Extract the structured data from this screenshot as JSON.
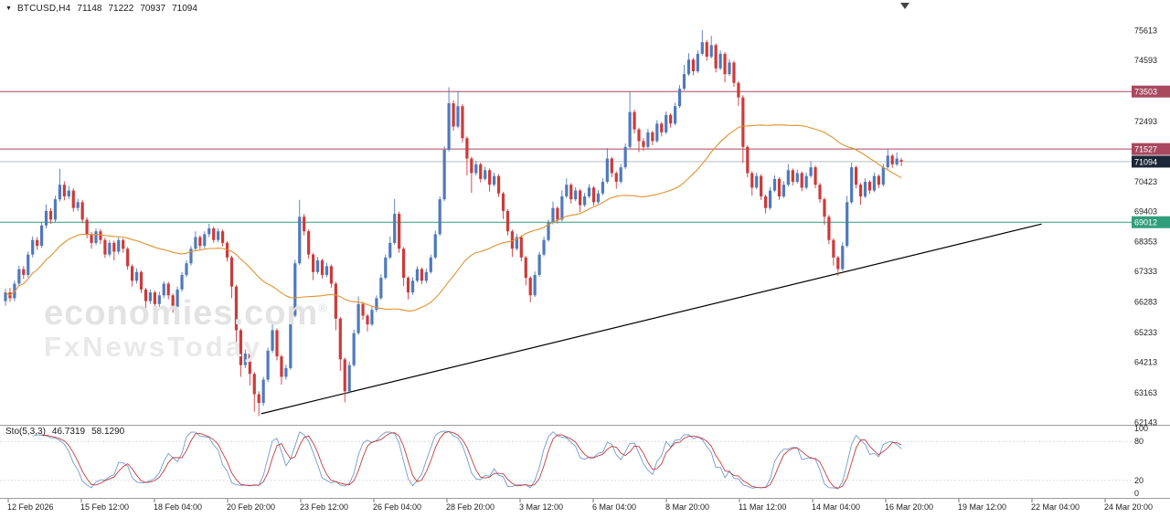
{
  "header": {
    "marker": "▼",
    "symbol": "BTCUSD,H4",
    "open": "71148",
    "high": "71222",
    "low": "70937",
    "close": "71094"
  },
  "watermark": {
    "line1": "economies.com",
    "trademark": "®",
    "line2": "FxNewsToday"
  },
  "indicator": {
    "name": "Sto(5,3,3)",
    "value1": "46.7319",
    "value2": "58.1290",
    "axis_labels": [
      "100",
      "80",
      "20",
      "0"
    ],
    "axis_values": [
      100,
      80,
      20,
      0
    ],
    "level_lines": [
      80,
      20
    ]
  },
  "price_axis": {
    "labels": [
      {
        "text": "75613",
        "price": 75613,
        "badge": false
      },
      {
        "text": "74593",
        "price": 74593,
        "badge": false
      },
      {
        "text": "73503",
        "price": 73503,
        "badge": true,
        "color": "#a8495f"
      },
      {
        "text": "72493",
        "price": 72493,
        "badge": false
      },
      {
        "text": "71527",
        "price": 71527,
        "badge": true,
        "color": "#a8495f"
      },
      {
        "text": "71094",
        "price": 71094,
        "badge": true,
        "color": "#1b2736"
      },
      {
        "text": "70423",
        "price": 70423,
        "badge": false
      },
      {
        "text": "69403",
        "price": 69403,
        "badge": false
      },
      {
        "text": "69012",
        "price": 69012,
        "badge": true,
        "color": "#2f9e7b"
      },
      {
        "text": "68353",
        "price": 68353,
        "badge": false
      },
      {
        "text": "67333",
        "price": 67333,
        "badge": false
      },
      {
        "text": "66283",
        "price": 66283,
        "badge": false
      },
      {
        "text": "65233",
        "price": 65233,
        "badge": false
      },
      {
        "text": "64213",
        "price": 64213,
        "badge": false
      },
      {
        "text": "63163",
        "price": 63163,
        "badge": false
      },
      {
        "text": "62143",
        "price": 62143,
        "badge": false
      }
    ]
  },
  "time_axis": {
    "labels": [
      "12 Feb 2026",
      "15 Feb 12:00",
      "18 Feb 04:00",
      "20 Feb 20:00",
      "23 Feb 12:00",
      "26 Feb 04:00",
      "28 Feb 20:00",
      "3 Mar 12:00",
      "6 Mar 04:00",
      "8 Mar 20:00",
      "11 Mar 12:00",
      "14 Mar 04:00",
      "16 Mar 20:00",
      "19 Mar 12:00",
      "22 Mar 04:00",
      "24 Mar 20:00"
    ]
  },
  "chart_data": {
    "type": "candlestick",
    "symbol": "BTCUSD",
    "timeframe": "H4",
    "title": "BTCUSD,H4",
    "ylim": [
      62143,
      75613
    ],
    "grid": false,
    "last_price": 71094,
    "up_color": "#5079bd",
    "down_color": "#cd3a3a",
    "ma_color": "#e0922f",
    "sto_k_color": "#6f9bd1",
    "sto_d_color": "#c43c3c",
    "moving_average": {
      "type": "SMA",
      "period": 40
    },
    "stochastic": {
      "k_period": 5,
      "slowing": 3,
      "d_period": 3,
      "current_k": 46.7319,
      "current_d": 58.129
    },
    "levels": [
      {
        "price": 73503,
        "color": "#a8495f",
        "name": "resistance-line-73503"
      },
      {
        "price": 71527,
        "color": "#a8495f",
        "name": "resistance-line-71527"
      },
      {
        "price": 71094,
        "color": "#b7bec4",
        "name": "current-price-line"
      },
      {
        "price": 69012,
        "color": "#2f9e7b",
        "name": "support-line-69012"
      }
    ],
    "trendline": {
      "from_bar": 56.5,
      "from_price": 62430,
      "to_bar": 229,
      "to_price": 68950,
      "color": "#000000"
    },
    "candles": [
      [
        66300,
        66720,
        66140,
        66600
      ],
      [
        66600,
        66750,
        66280,
        66400
      ],
      [
        66400,
        67000,
        66300,
        66900
      ],
      [
        66900,
        67520,
        66820,
        67400
      ],
      [
        67400,
        67510,
        67060,
        67200
      ],
      [
        67200,
        68010,
        67110,
        67900
      ],
      [
        67900,
        68520,
        67800,
        68400
      ],
      [
        68400,
        68500,
        68060,
        68200
      ],
      [
        68200,
        69010,
        68120,
        68900
      ],
      [
        68900,
        69620,
        68800,
        69400
      ],
      [
        69400,
        69500,
        68960,
        69100
      ],
      [
        69100,
        69920,
        69020,
        69800
      ],
      [
        69800,
        70850,
        69720,
        70300
      ],
      [
        70300,
        70420,
        69760,
        69900
      ],
      [
        69900,
        70260,
        69800,
        70100
      ],
      [
        70100,
        70180,
        69380,
        69500
      ],
      [
        69500,
        69820,
        69400,
        69700
      ],
      [
        69700,
        69780,
        68980,
        69100
      ],
      [
        69100,
        69180,
        68460,
        68600
      ],
      [
        68600,
        68680,
        68100,
        68300
      ],
      [
        68300,
        68800,
        68220,
        68700
      ],
      [
        68700,
        68780,
        68260,
        68400
      ],
      [
        68400,
        68480,
        67780,
        67900
      ],
      [
        67900,
        68400,
        67820,
        68300
      ],
      [
        68300,
        68380,
        67700,
        68000
      ],
      [
        68000,
        68500,
        67900,
        68400
      ],
      [
        68400,
        68460,
        67960,
        68100
      ],
      [
        68100,
        68160,
        67380,
        67500
      ],
      [
        67500,
        67560,
        66800,
        67000
      ],
      [
        67000,
        67420,
        66900,
        67300
      ],
      [
        67300,
        67360,
        66580,
        66700
      ],
      [
        66700,
        66760,
        66000,
        66300
      ],
      [
        66300,
        66700,
        66200,
        66600
      ],
      [
        66600,
        66660,
        65950,
        66200
      ],
      [
        66200,
        66620,
        66100,
        66500
      ],
      [
        66500,
        66980,
        66400,
        66900
      ],
      [
        66900,
        66960,
        66360,
        66500
      ],
      [
        66500,
        66560,
        65900,
        66100
      ],
      [
        66100,
        66800,
        66020,
        66700
      ],
      [
        66700,
        67300,
        66620,
        67200
      ],
      [
        67200,
        67700,
        67120,
        67600
      ],
      [
        67600,
        68200,
        67520,
        68100
      ],
      [
        68100,
        68700,
        68020,
        68500
      ],
      [
        68500,
        68560,
        68080,
        68200
      ],
      [
        68200,
        68700,
        68120,
        68600
      ],
      [
        68600,
        68960,
        68500,
        68800
      ],
      [
        68800,
        68860,
        68300,
        68400
      ],
      [
        68400,
        68800,
        68320,
        68700
      ],
      [
        68700,
        68760,
        68180,
        68300
      ],
      [
        68300,
        68360,
        67660,
        67800
      ],
      [
        67800,
        67860,
        66400,
        66800
      ],
      [
        66800,
        66860,
        64800,
        65300
      ],
      [
        65300,
        65360,
        63700,
        64100
      ],
      [
        64100,
        64640,
        64000,
        64500
      ],
      [
        64500,
        64560,
        63400,
        63800
      ],
      [
        63800,
        63860,
        62500,
        63100
      ],
      [
        63100,
        63200,
        62350,
        62800
      ],
      [
        62800,
        63700,
        62700,
        63600
      ],
      [
        63600,
        64700,
        63520,
        64600
      ],
      [
        64600,
        65520,
        64520,
        65300
      ],
      [
        65300,
        65360,
        64260,
        64400
      ],
      [
        64400,
        64460,
        63430,
        63700
      ],
      [
        63700,
        64120,
        63600,
        64000
      ],
      [
        64000,
        65900,
        63940,
        65800
      ],
      [
        65800,
        67720,
        65740,
        67600
      ],
      [
        67600,
        69780,
        67540,
        69200
      ],
      [
        69200,
        69300,
        68560,
        68700
      ],
      [
        68700,
        68760,
        67760,
        67900
      ],
      [
        67900,
        67960,
        67020,
        67300
      ],
      [
        67300,
        67820,
        67220,
        67700
      ],
      [
        67700,
        67760,
        67080,
        67200
      ],
      [
        67200,
        67620,
        67120,
        67500
      ],
      [
        67500,
        67560,
        66760,
        66900
      ],
      [
        66900,
        66960,
        65300,
        65700
      ],
      [
        65700,
        65760,
        63900,
        64300
      ],
      [
        64300,
        64360,
        62820,
        63200
      ],
      [
        63200,
        64220,
        63120,
        64100
      ],
      [
        64100,
        65320,
        64040,
        65200
      ],
      [
        65200,
        66460,
        65140,
        66200
      ],
      [
        66200,
        66280,
        65660,
        65800
      ],
      [
        65800,
        65860,
        65260,
        65500
      ],
      [
        65500,
        66120,
        65440,
        66000
      ],
      [
        66000,
        66500,
        65920,
        66400
      ],
      [
        66400,
        67220,
        66340,
        67100
      ],
      [
        67100,
        67900,
        67040,
        67800
      ],
      [
        67800,
        68520,
        67740,
        68300
      ],
      [
        68300,
        69810,
        68240,
        69300
      ],
      [
        69300,
        69380,
        67960,
        68100
      ],
      [
        68100,
        68160,
        66820,
        67100
      ],
      [
        67100,
        67160,
        66360,
        66600
      ],
      [
        66600,
        67120,
        66520,
        67000
      ],
      [
        67000,
        67500,
        66940,
        67400
      ],
      [
        67400,
        67460,
        66880,
        67000
      ],
      [
        67000,
        67420,
        66920,
        67300
      ],
      [
        67300,
        67900,
        67240,
        67800
      ],
      [
        67800,
        68720,
        67740,
        68600
      ],
      [
        68600,
        69900,
        68540,
        69800
      ],
      [
        69800,
        71620,
        69740,
        71500
      ],
      [
        71500,
        73650,
        71440,
        73100
      ],
      [
        73100,
        73200,
        72160,
        72300
      ],
      [
        72300,
        73520,
        72240,
        73000
      ],
      [
        73000,
        73080,
        71760,
        71900
      ],
      [
        71900,
        71960,
        70620,
        71200
      ],
      [
        71200,
        71260,
        70020,
        70700
      ],
      [
        70700,
        71120,
        70620,
        71000
      ],
      [
        71000,
        71060,
        70380,
        70500
      ],
      [
        70500,
        70920,
        70440,
        70800
      ],
      [
        70800,
        70860,
        70060,
        70300
      ],
      [
        70300,
        70720,
        70240,
        70600
      ],
      [
        70600,
        70660,
        69880,
        70000
      ],
      [
        70000,
        70060,
        69120,
        69400
      ],
      [
        69400,
        69460,
        68560,
        68700
      ],
      [
        68700,
        68760,
        67820,
        68100
      ],
      [
        68100,
        68620,
        68040,
        68500
      ],
      [
        68500,
        68560,
        67660,
        67800
      ],
      [
        67800,
        67860,
        66840,
        67100
      ],
      [
        67100,
        67160,
        66260,
        66500
      ],
      [
        66500,
        67320,
        66440,
        67200
      ],
      [
        67200,
        68000,
        67140,
        67900
      ],
      [
        67900,
        68520,
        67840,
        68400
      ],
      [
        68400,
        69100,
        68340,
        69000
      ],
      [
        69000,
        69720,
        68940,
        69500
      ],
      [
        69500,
        69560,
        68960,
        69100
      ],
      [
        69100,
        70110,
        69040,
        69900
      ],
      [
        69900,
        70520,
        69840,
        70300
      ],
      [
        70300,
        70360,
        69660,
        69800
      ],
      [
        69800,
        70220,
        69740,
        70100
      ],
      [
        70100,
        70160,
        69360,
        69600
      ],
      [
        69600,
        70020,
        69540,
        69900
      ],
      [
        69900,
        70320,
        69840,
        70200
      ],
      [
        70200,
        70260,
        69580,
        69700
      ],
      [
        69700,
        70120,
        69640,
        70000
      ],
      [
        70000,
        70520,
        69940,
        70400
      ],
      [
        70400,
        71560,
        70340,
        71200
      ],
      [
        71200,
        71260,
        70560,
        70700
      ],
      [
        70700,
        70760,
        70160,
        70400
      ],
      [
        70400,
        71020,
        70340,
        70900
      ],
      [
        70900,
        71720,
        70840,
        71600
      ],
      [
        71600,
        73500,
        71540,
        72800
      ],
      [
        72800,
        72880,
        72060,
        72200
      ],
      [
        72200,
        72260,
        71420,
        71800
      ],
      [
        71800,
        71900,
        71460,
        71600
      ],
      [
        71600,
        72220,
        71540,
        72100
      ],
      [
        72100,
        72160,
        71660,
        71800
      ],
      [
        71800,
        72520,
        71740,
        72400
      ],
      [
        72400,
        72460,
        71960,
        72100
      ],
      [
        72100,
        72820,
        72040,
        72700
      ],
      [
        72700,
        72760,
        72260,
        72400
      ],
      [
        72400,
        73120,
        72340,
        73000
      ],
      [
        73000,
        73720,
        72940,
        73600
      ],
      [
        73600,
        74420,
        73540,
        74100
      ],
      [
        74100,
        74820,
        74040,
        74600
      ],
      [
        74600,
        74660,
        74060,
        74200
      ],
      [
        74200,
        74920,
        74140,
        74800
      ],
      [
        74800,
        75613,
        74740,
        75200
      ],
      [
        75200,
        75280,
        74560,
        74700
      ],
      [
        74700,
        75420,
        74640,
        75100
      ],
      [
        75100,
        75160,
        74160,
        74300
      ],
      [
        74300,
        74920,
        74240,
        74800
      ],
      [
        74800,
        74860,
        73820,
        74100
      ],
      [
        74100,
        74620,
        74040,
        74500
      ],
      [
        74500,
        74560,
        73660,
        73800
      ],
      [
        73800,
        73860,
        73010,
        73300
      ],
      [
        73300,
        73380,
        71050,
        71600
      ],
      [
        71600,
        71660,
        70560,
        70700
      ],
      [
        70700,
        70760,
        69920,
        70200
      ],
      [
        70200,
        70720,
        70140,
        70600
      ],
      [
        70600,
        70660,
        69780,
        69900
      ],
      [
        69900,
        69960,
        69310,
        69500
      ],
      [
        69500,
        70220,
        69440,
        70100
      ],
      [
        70100,
        70620,
        70040,
        70500
      ],
      [
        70500,
        70560,
        69780,
        69900
      ],
      [
        69900,
        70420,
        69840,
        70300
      ],
      [
        70300,
        71010,
        70240,
        70800
      ],
      [
        70800,
        70860,
        70280,
        70400
      ],
      [
        70400,
        70820,
        70340,
        70700
      ],
      [
        70700,
        70760,
        70080,
        70200
      ],
      [
        70200,
        70720,
        70140,
        70600
      ],
      [
        70600,
        71110,
        70540,
        70900
      ],
      [
        70900,
        70960,
        70180,
        70300
      ],
      [
        70300,
        70360,
        69680,
        69800
      ],
      [
        69800,
        69860,
        68920,
        69200
      ],
      [
        69200,
        69260,
        68260,
        68400
      ],
      [
        68400,
        68460,
        67520,
        67800
      ],
      [
        67800,
        67860,
        67160,
        67400
      ],
      [
        67400,
        68320,
        67340,
        68200
      ],
      [
        68200,
        69920,
        68140,
        69700
      ],
      [
        69700,
        71060,
        69640,
        70900
      ],
      [
        70900,
        70960,
        70180,
        70300
      ],
      [
        70300,
        70360,
        69610,
        69900
      ],
      [
        69900,
        70520,
        69840,
        70400
      ],
      [
        70400,
        70460,
        69980,
        70100
      ],
      [
        70100,
        70720,
        70040,
        70600
      ],
      [
        70600,
        70660,
        70180,
        70300
      ],
      [
        70300,
        71020,
        70240,
        70900
      ],
      [
        70900,
        71530,
        70840,
        71300
      ],
      [
        71300,
        71360,
        70880,
        71000
      ],
      [
        71000,
        71410,
        70940,
        71200
      ],
      [
        71148,
        71222,
        70937,
        71094
      ]
    ]
  }
}
